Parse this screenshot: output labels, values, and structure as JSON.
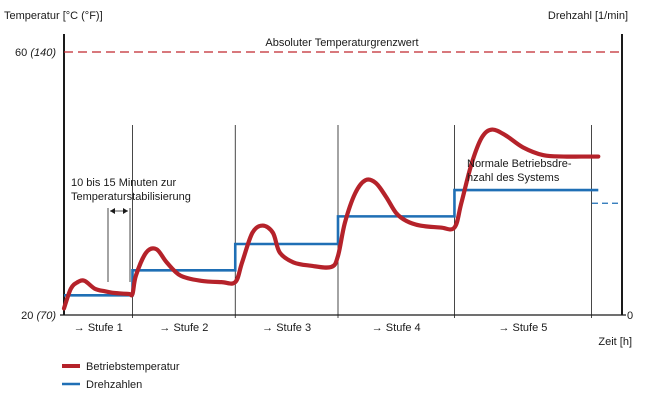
{
  "chart_data": {
    "type": "line",
    "title": "",
    "y_left_label": "Temperatur [°C (°F)]",
    "y_right_label": "Drehzahl [1/min]",
    "x_label": "Zeit [h]",
    "y_left_ticks": [
      {
        "value": 20,
        "main": "20",
        "alt": "(70)"
      },
      {
        "value": 60,
        "main": "60",
        "alt": "(140)"
      }
    ],
    "y_right_ticks": [
      {
        "value": 0,
        "label": "0"
      }
    ],
    "ylim": [
      20,
      60
    ],
    "stages": [
      "→ Stufe 1",
      "→ Stufe 2",
      "→ Stufe 3",
      "→ Stufe 4",
      "→ Stufe 5"
    ],
    "stage_boundaries_h": [
      0,
      1,
      2.5,
      4,
      5.7,
      7.7
    ],
    "limit_line": {
      "value": 60,
      "label": "Absoluter Temperaturgrenzwert",
      "color": "#c0282d"
    },
    "annotations": {
      "stabilization": "10 bis 15 Minuten zur Temperaturstabilisierung",
      "stabilization_lines": [
        "10 bis 15 Minuten zur",
        "Temperaturstabilisierung"
      ],
      "normal_speed": "Normale Betriebsdrehzahl des Systems",
      "normal_speed_lines": [
        "Normale Betriebsdre-",
        "hzahl des Systems"
      ],
      "normal_speed_value": 37
    },
    "series": [
      {
        "name": "Betriebstemperatur",
        "color": "#b5222a",
        "x": [
          0,
          0.1,
          0.2,
          0.3,
          0.45,
          0.6,
          0.7,
          0.8,
          0.95,
          1.0,
          1.05,
          1.2,
          1.35,
          1.5,
          1.7,
          2.0,
          2.3,
          2.5,
          2.6,
          2.75,
          2.9,
          3.05,
          3.15,
          3.35,
          3.6,
          3.9,
          4.0,
          4.1,
          4.25,
          4.4,
          4.55,
          4.7,
          4.85,
          5.0,
          5.2,
          5.5,
          5.7,
          5.8,
          5.95,
          6.1,
          6.25,
          6.45,
          6.7,
          7.0,
          7.3,
          7.55,
          7.8
        ],
        "values": [
          21,
          24,
          25,
          25.2,
          24,
          23.6,
          23.4,
          23.3,
          23.2,
          23.2,
          26,
          29.5,
          30,
          28,
          26,
          25.2,
          25,
          25,
          28,
          32.5,
          33.6,
          32.5,
          29.5,
          28,
          27.5,
          27.3,
          29,
          34,
          38.5,
          40.5,
          40.1,
          38,
          35.5,
          34.3,
          33.6,
          33.3,
          33.3,
          37,
          43,
          47,
          48.2,
          47.3,
          45.5,
          44.3,
          44.1,
          44.1,
          44.1
        ]
      },
      {
        "name": "Drehzahlen",
        "color": "#1f6fb5",
        "x": [
          0,
          1.0,
          1.0,
          2.5,
          2.5,
          4.0,
          4.0,
          5.7,
          5.7,
          7.8
        ],
        "values": [
          23,
          23,
          26.8,
          26.8,
          30.8,
          30.8,
          35,
          35,
          39,
          39
        ]
      }
    ]
  },
  "legend": {
    "items": [
      {
        "label": "Betriebstemperatur",
        "color": "#b5222a"
      },
      {
        "label": "Drehzahlen",
        "color": "#1f6fb5"
      }
    ]
  }
}
